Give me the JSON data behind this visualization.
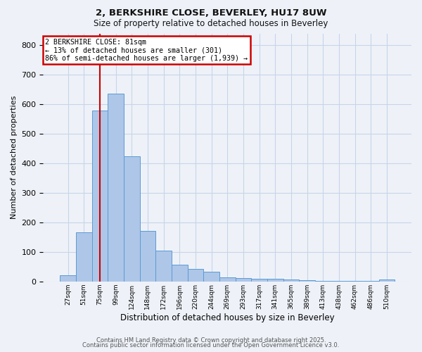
{
  "title1": "2, BERKSHIRE CLOSE, BEVERLEY, HU17 8UW",
  "title2": "Size of property relative to detached houses in Beverley",
  "xlabel": "Distribution of detached houses by size in Beverley",
  "ylabel": "Number of detached properties",
  "bar_labels": [
    "27sqm",
    "51sqm",
    "75sqm",
    "99sqm",
    "124sqm",
    "148sqm",
    "172sqm",
    "196sqm",
    "220sqm",
    "244sqm",
    "269sqm",
    "293sqm",
    "317sqm",
    "341sqm",
    "365sqm",
    "389sqm",
    "413sqm",
    "438sqm",
    "462sqm",
    "486sqm",
    "510sqm"
  ],
  "bar_values": [
    20,
    167,
    580,
    635,
    425,
    172,
    105,
    57,
    42,
    32,
    15,
    12,
    10,
    8,
    7,
    4,
    3,
    2,
    1,
    1,
    6
  ],
  "bar_color": "#aec6e8",
  "bar_edge_color": "#5b9bd5",
  "grid_color": "#c8d4e8",
  "bg_color": "#eef2f8",
  "red_line_x": 2.0,
  "annotation_text": "2 BERKSHIRE CLOSE: 81sqm\n← 13% of detached houses are smaller (301)\n86% of semi-detached houses are larger (1,939) →",
  "annotation_box_color": "#ffffff",
  "annotation_border_color": "#cc0000",
  "footer1": "Contains HM Land Registry data © Crown copyright and database right 2025.",
  "footer2": "Contains public sector information licensed under the Open Government Licence v3.0.",
  "ylim": [
    0,
    840
  ],
  "yticks": [
    0,
    100,
    200,
    300,
    400,
    500,
    600,
    700,
    800
  ]
}
